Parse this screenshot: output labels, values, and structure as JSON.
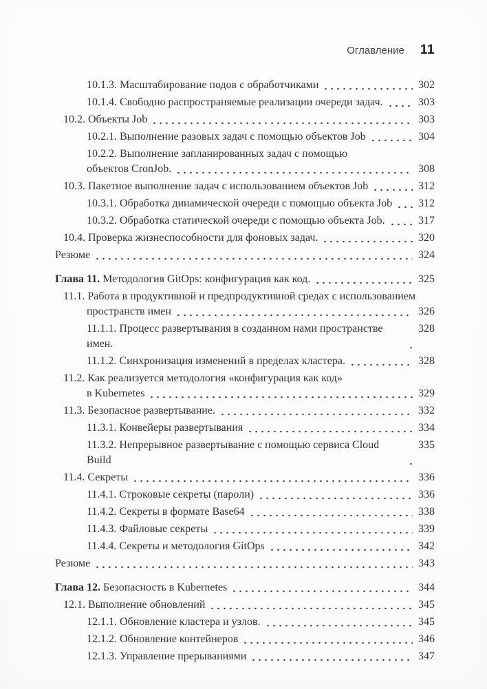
{
  "colors": {
    "page_background": "#fcfcfc",
    "body_text": "#353535",
    "header_text": "#454545",
    "header_page_number": "#1c1c1c",
    "dot_leader": "#3a3a3a"
  },
  "header": {
    "title": "Оглавление",
    "page_number": "11"
  },
  "toc": {
    "entries": [
      {
        "level": 2,
        "lines": [
          "10.1.3. Масштабирование подов с обработчиками"
        ],
        "page": "302"
      },
      {
        "level": 2,
        "lines": [
          "10.1.4. Свободно распространяемые реализации очереди задач."
        ],
        "page": "303"
      },
      {
        "level": 1,
        "lines": [
          "10.2. Объекты Job"
        ],
        "page": "303"
      },
      {
        "level": 2,
        "lines": [
          "10.2.1. Выполнение разовых задач с помощью объектов Job"
        ],
        "page": "304"
      },
      {
        "level": 2,
        "lines": [
          "10.2.2. Выполнение запланированных задач с помощью",
          "объектов CronJob."
        ],
        "page": "308"
      },
      {
        "level": 1,
        "lines": [
          "10.3. Пакетное выполнение задач с использованием объектов Job"
        ],
        "page": "312"
      },
      {
        "level": 2,
        "lines": [
          "10.3.1. Обработка динамической очереди с помощью объекта Job"
        ],
        "page": "312"
      },
      {
        "level": 2,
        "lines": [
          "10.3.2. Обработка статической очереди с помощью объекта Job."
        ],
        "page": "317"
      },
      {
        "level": 1,
        "lines": [
          "10.4. Проверка жизнеспособности для фоновых задач."
        ],
        "page": "320"
      },
      {
        "level": "plain",
        "lines": [
          "Резюме"
        ],
        "page": "324"
      },
      {
        "level": "chapter",
        "gap": true,
        "prefix": "Глава 11.",
        "lines": [
          "Методология GitOps: конфигурация как код."
        ],
        "page": "325"
      },
      {
        "level": 1,
        "lines": [
          "11.1. Работа в продуктивной и предпродуктивной средах с использованием",
          "пространств имен"
        ],
        "page": "326"
      },
      {
        "level": 2,
        "lines": [
          "11.1.1. Процесс развертывания в созданном нами пространстве имен."
        ],
        "page": "328"
      },
      {
        "level": 2,
        "lines": [
          "11.1.2. Синхронизация изменений в пределах кластера."
        ],
        "page": "328"
      },
      {
        "level": 1,
        "lines": [
          "11.2. Как реализуется методология «конфигурация как код»",
          "в Kubernetes"
        ],
        "page": "329"
      },
      {
        "level": 1,
        "lines": [
          "11.3. Безопасное развертывание."
        ],
        "page": "332"
      },
      {
        "level": 2,
        "lines": [
          "11.3.1. Конвейеры развертывания"
        ],
        "page": "334"
      },
      {
        "level": 2,
        "lines": [
          "11.3.2. Непрерывное развертывание с помощью сервиса Cloud Build"
        ],
        "page": "335"
      },
      {
        "level": 1,
        "lines": [
          "11.4. Секреты"
        ],
        "page": "336"
      },
      {
        "level": 2,
        "lines": [
          "11.4.1. Строковые секреты (пароли)"
        ],
        "page": "336"
      },
      {
        "level": 2,
        "lines": [
          "11.4.2. Секреты в формате Base64"
        ],
        "page": "338"
      },
      {
        "level": 2,
        "lines": [
          "11.4.3. Файловые секреты"
        ],
        "page": "339"
      },
      {
        "level": 2,
        "lines": [
          "11.4.4. Секреты и методология GitOps"
        ],
        "page": "342"
      },
      {
        "level": "plain",
        "lines": [
          "Резюме"
        ],
        "page": "343"
      },
      {
        "level": "chapter",
        "gap": true,
        "prefix": "Глава 12.",
        "lines": [
          "Безопасность в Kubernetes"
        ],
        "page": "344"
      },
      {
        "level": 1,
        "lines": [
          "12.1. Выполнение обновлений"
        ],
        "page": "345"
      },
      {
        "level": 2,
        "lines": [
          "12.1.1. Обновление кластера и узлов."
        ],
        "page": "345"
      },
      {
        "level": 2,
        "lines": [
          "12.1.2. Обновление контейнеров"
        ],
        "page": "346"
      },
      {
        "level": 2,
        "lines": [
          "12.1.3. Управление прерываниями"
        ],
        "page": "347"
      }
    ]
  }
}
